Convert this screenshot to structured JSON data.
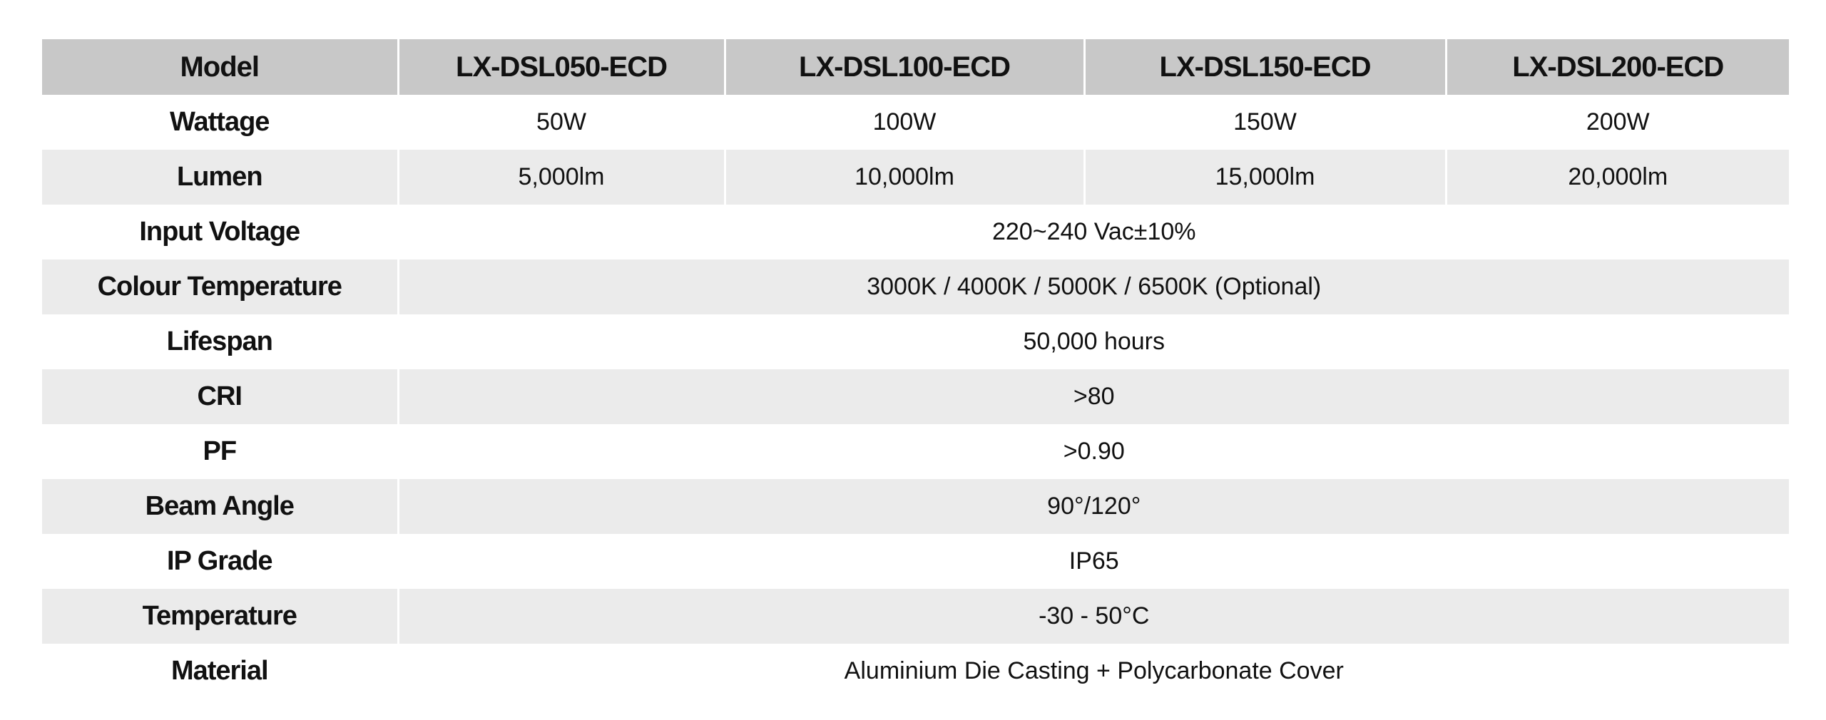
{
  "table": {
    "header": [
      "Model",
      "LX-DSL050-ECD",
      "LX-DSL100-ECD",
      "LX-DSL150-ECD",
      "LX-DSL200-ECD"
    ],
    "rows": [
      {
        "label": "Wattage",
        "values": [
          "50W",
          "100W",
          "150W",
          "200W"
        ]
      },
      {
        "label": "Lumen",
        "values": [
          "5,000lm",
          "10,000lm",
          "15,000lm",
          "20,000lm"
        ]
      },
      {
        "label": "Input Voltage",
        "values": [
          "220~240 Vac±10%"
        ]
      },
      {
        "label": "Colour Temperature",
        "values": [
          "3000K / 4000K / 5000K / 6500K (Optional)"
        ]
      },
      {
        "label": "Lifespan",
        "values": [
          "50,000 hours"
        ]
      },
      {
        "label": "CRI",
        "values": [
          ">80"
        ]
      },
      {
        "label": "PF",
        "values": [
          ">0.90"
        ]
      },
      {
        "label": "Beam Angle",
        "values": [
          "90°/120°"
        ]
      },
      {
        "label": "IP Grade",
        "values": [
          "IP65"
        ]
      },
      {
        "label": "Temperature",
        "values": [
          "-30 - 50°C"
        ]
      },
      {
        "label": "Material",
        "values": [
          "Aluminium Die Casting + Polycarbonate Cover"
        ]
      }
    ]
  }
}
